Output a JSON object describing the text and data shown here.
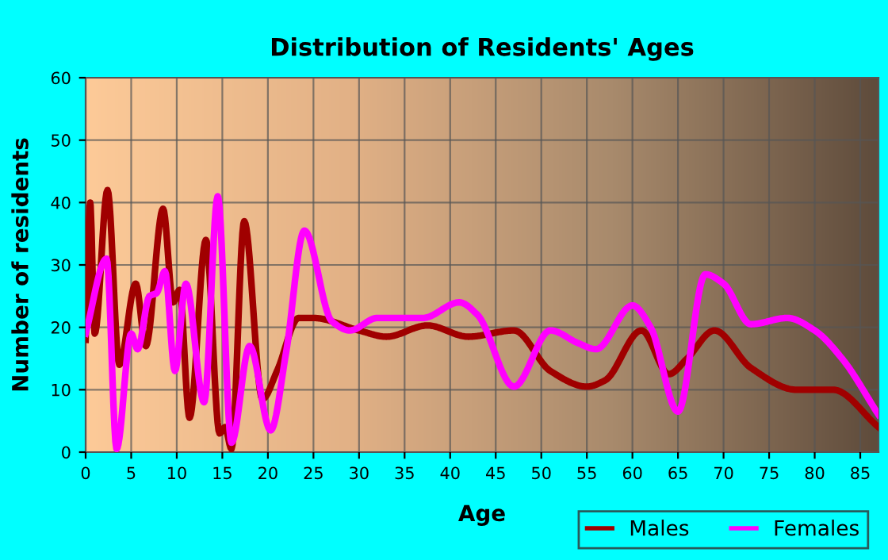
{
  "chart_data": {
    "type": "line",
    "title": "Distribution of Residents' Ages",
    "xlabel": "Age",
    "ylabel": "Number of residents",
    "xlim": [
      0,
      87
    ],
    "xticks": [
      0,
      5,
      10,
      15,
      20,
      25,
      30,
      35,
      40,
      45,
      50,
      55,
      60,
      65,
      70,
      75,
      80,
      85
    ],
    "ylim": [
      0,
      60
    ],
    "yticks": [
      0,
      10,
      20,
      30,
      40,
      50,
      60
    ],
    "grid": true,
    "legend": "bottom right",
    "series": [
      {
        "name": "Males",
        "color": "#a00000",
        "x": [
          0,
          0.5,
          1,
          2.4,
          3.7,
          5.5,
          6.6,
          8.5,
          9.6,
          10.3,
          11.4,
          13.2,
          14.7,
          15.3,
          16,
          17.4,
          19.4,
          21,
          23.4,
          25,
          30,
          33,
          37.5,
          42,
          47,
          51,
          55,
          57,
          61,
          64,
          66,
          69,
          73,
          78,
          82,
          87
        ],
        "values": [
          18,
          40,
          19,
          42,
          14,
          27,
          17,
          39,
          24,
          26,
          5.5,
          34,
          3,
          4,
          0.5,
          37,
          8.5,
          13,
          21.5,
          21.5,
          19.5,
          18.5,
          20.3,
          18.5,
          19.5,
          13,
          10.5,
          11.5,
          19.5,
          12.5,
          15,
          19.5,
          13.5,
          10,
          10,
          4
        ]
      },
      {
        "name": "Females",
        "color": "#ff00ff",
        "x": [
          0,
          2.3,
          3.4,
          5,
          5.7,
          7,
          7.8,
          8.7,
          9.8,
          11,
          13,
          14.5,
          16,
          18,
          20.3,
          22,
          24,
          27,
          29,
          32,
          37,
          41,
          43,
          47,
          51,
          54,
          56,
          60,
          62,
          65,
          68,
          70,
          73,
          77,
          80,
          83,
          87
        ],
        "values": [
          19,
          31,
          0.5,
          19,
          16.5,
          25,
          25.5,
          29,
          13,
          27,
          8,
          41,
          1.5,
          17,
          3.5,
          16,
          35.5,
          21,
          19.5,
          21.5,
          21.5,
          24,
          22,
          10.5,
          19.5,
          17.5,
          16.5,
          23.5,
          20,
          6.5,
          28.5,
          27,
          20.5,
          21.5,
          19.5,
          15,
          6
        ]
      }
    ]
  }
}
